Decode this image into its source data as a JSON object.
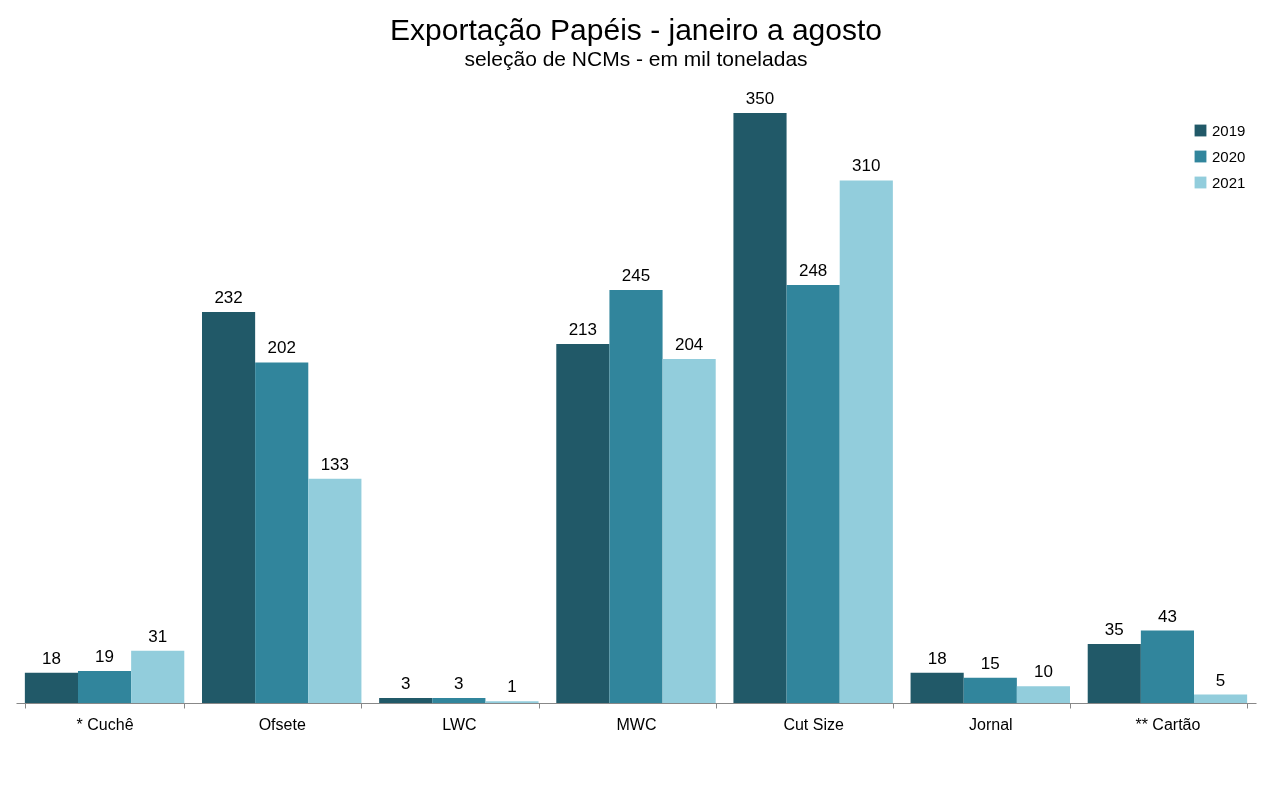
{
  "chart_data": {
    "type": "bar",
    "title": "Exportação Papéis - janeiro a agosto",
    "subtitle": "seleção de NCMs - em mil toneladas",
    "categories": [
      "* Cuchê",
      "Ofsete",
      "LWC",
      "MWC",
      "Cut Size",
      "Jornal",
      "** Cartão"
    ],
    "series": [
      {
        "name": "2019",
        "color": "#215968",
        "values": [
          18,
          232,
          3,
          213,
          350,
          18,
          35
        ]
      },
      {
        "name": "2020",
        "color": "#31859c",
        "values": [
          19,
          202,
          3,
          245,
          248,
          15,
          43
        ]
      },
      {
        "name": "2021",
        "color": "#92cddc",
        "values": [
          31,
          133,
          1,
          204,
          310,
          10,
          5
        ]
      }
    ],
    "data_labels": true,
    "legend": "top right",
    "grid": false
  }
}
